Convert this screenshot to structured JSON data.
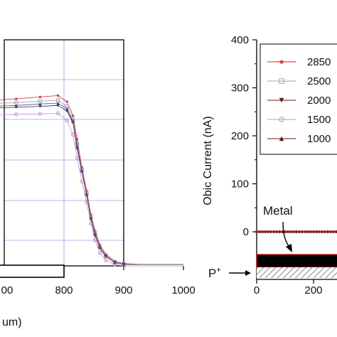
{
  "chart_data": [
    {
      "type": "scatter",
      "panel": "left",
      "title": "",
      "xlabel": "um)",
      "ylabel": "",
      "xlim": [
        500,
        1000
      ],
      "x_tick_labels": [
        "800",
        "900",
        "1000"
      ],
      "x_tick_values": [
        800,
        900,
        1000
      ],
      "partial_tick_text": "00",
      "grid": true,
      "series": [
        {
          "color": "#d42020",
          "marker": "star",
          "x": [
            505,
            530,
            560,
            600,
            640,
            680,
            720,
            760,
            790,
            805,
            815,
            822,
            830,
            838,
            845,
            852,
            860,
            870,
            885,
            900,
            930,
            960,
            1000
          ],
          "y": [
            425,
            430,
            434,
            438,
            441,
            443,
            446,
            450,
            453,
            440,
            410,
            360,
            300,
            250,
            200,
            165,
            135,
            115,
            100,
            95,
            93,
            93,
            93
          ]
        },
        {
          "color": "#a0a0c0",
          "marker": "square",
          "x": [
            505,
            530,
            560,
            600,
            640,
            680,
            720,
            760,
            790,
            805,
            815,
            822,
            830,
            838,
            845,
            852,
            860,
            870,
            885,
            900,
            930,
            960,
            1000
          ],
          "y": [
            418,
            422,
            426,
            430,
            433,
            436,
            438,
            441,
            443,
            430,
            400,
            350,
            295,
            245,
            195,
            160,
            130,
            112,
            98,
            94,
            93,
            93,
            93
          ]
        },
        {
          "color": "#1a1a80",
          "marker": "triangle-down",
          "x": [
            505,
            530,
            560,
            600,
            640,
            680,
            720,
            760,
            790,
            805,
            815,
            822,
            830,
            838,
            845,
            852,
            860,
            870,
            885,
            900,
            930,
            960,
            1000
          ],
          "y": [
            410,
            413,
            417,
            421,
            424,
            426,
            428,
            430,
            432,
            420,
            395,
            340,
            290,
            240,
            190,
            155,
            128,
            110,
            97,
            93,
            93,
            93,
            93
          ]
        },
        {
          "color": "#c090c8",
          "marker": "circle",
          "x": [
            505,
            530,
            560,
            600,
            640,
            680,
            720,
            760,
            790,
            805,
            815,
            822,
            830,
            838,
            845,
            852,
            860,
            870,
            885,
            900,
            930,
            960,
            1000
          ],
          "y": [
            400,
            402,
            405,
            408,
            410,
            412,
            413,
            414,
            415,
            400,
            370,
            320,
            270,
            225,
            180,
            145,
            118,
            102,
            93,
            90,
            90,
            90,
            90
          ]
        },
        {
          "color": "#555555",
          "marker": "triangle-up",
          "x": [
            505,
            530,
            560,
            600,
            640,
            680,
            720,
            760,
            790,
            805,
            815,
            822,
            830,
            838,
            845,
            852,
            860,
            870,
            885,
            900,
            930,
            960,
            1000
          ],
          "y": [
            415,
            418,
            421,
            425,
            428,
            430,
            432,
            435,
            437,
            425,
            398,
            345,
            292,
            242,
            192,
            158,
            130,
            111,
            97,
            93,
            93,
            93,
            93
          ]
        }
      ]
    },
    {
      "type": "scatter",
      "panel": "right",
      "title": "",
      "xlabel": "",
      "ylabel": "Obic Current (nA)",
      "xlim": [
        0,
        300
      ],
      "ylim": [
        -50,
        400
      ],
      "x_tick_labels": [
        "0",
        "200"
      ],
      "x_tick_values": [
        0,
        200
      ],
      "y_tick_labels": [
        "0",
        "100",
        "200",
        "300",
        "400"
      ],
      "y_tick_values": [
        0,
        100,
        200,
        300,
        400
      ],
      "legend": {
        "placement": "top-right",
        "entries": [
          {
            "label": "2850",
            "color": "#d42020",
            "marker": "star"
          },
          {
            "label": "2500",
            "color": "#a0a0c0",
            "marker": "square"
          },
          {
            "label": "2000",
            "color": "#6b1010",
            "marker": "triangle-down"
          },
          {
            "label": "1500",
            "color": "#c090c8",
            "marker": "circle"
          },
          {
            "label": "1000",
            "color": "#6b1010",
            "marker": "triangle-up"
          }
        ]
      },
      "series": [
        {
          "color": "#8b1a2b",
          "marker": "circle",
          "x": [
            0,
            10,
            20,
            30,
            40,
            50,
            60,
            70,
            80,
            90,
            100,
            110,
            120,
            130,
            140,
            150,
            160,
            170,
            180,
            190,
            200,
            210,
            220,
            230,
            240,
            250,
            260,
            270,
            280,
            290,
            300
          ],
          "y": [
            0,
            0,
            0,
            0,
            0,
            0,
            0,
            0,
            0,
            0,
            0,
            0,
            0,
            0,
            0,
            0,
            0,
            0,
            0,
            0,
            0,
            0,
            0,
            0,
            0,
            0,
            0,
            0,
            0,
            0,
            0
          ]
        }
      ],
      "annotations": {
        "metal_label": "Metal",
        "p_label": "P",
        "p_sup": "+"
      }
    }
  ]
}
